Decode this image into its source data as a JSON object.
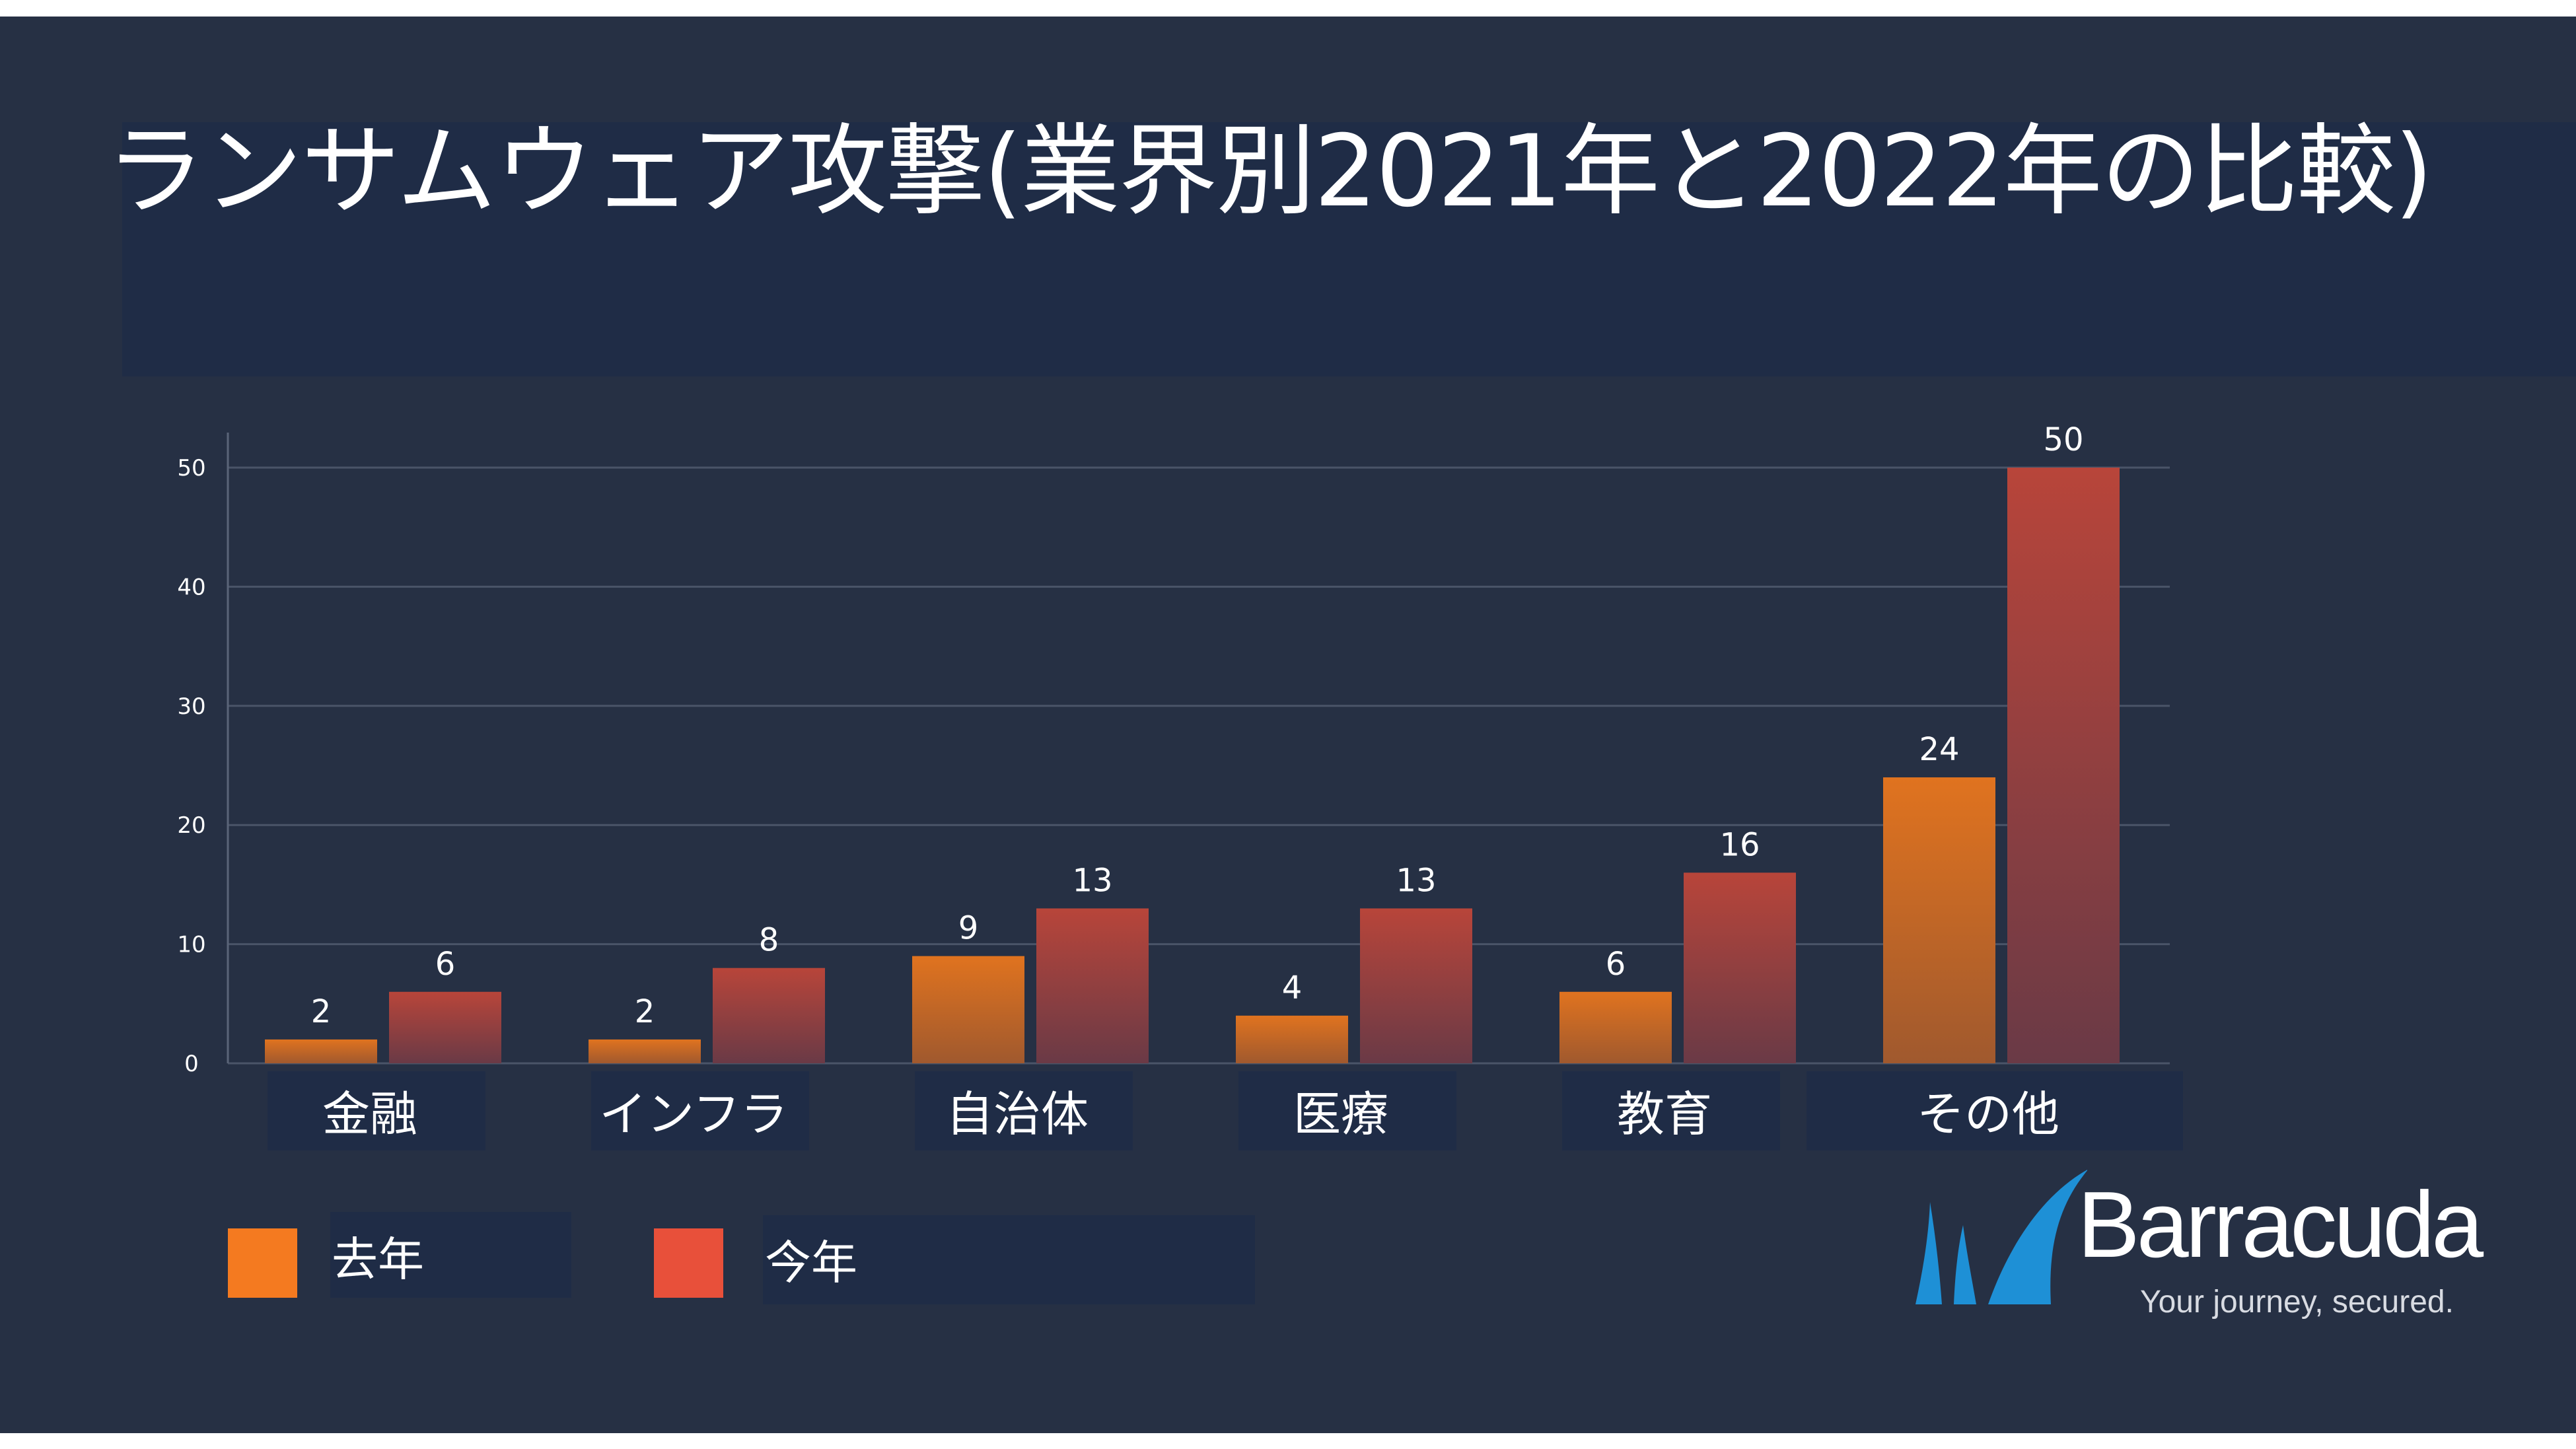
{
  "chart_data": {
    "type": "bar",
    "title": "ランサムウェア攻撃(業界別2021年と2022年の比較)",
    "categories": [
      "金融",
      "インフラ",
      "自治体",
      "医療",
      "教育",
      "その他"
    ],
    "series": [
      {
        "name": "去年",
        "values": [
          2,
          2,
          9,
          4,
          6,
          24
        ]
      },
      {
        "name": "今年",
        "values": [
          6,
          8,
          13,
          13,
          16,
          50
        ]
      }
    ],
    "ylim": [
      0,
      50
    ],
    "yticks": [
      0,
      10,
      20,
      30,
      40,
      50
    ],
    "grid": true,
    "legend": "bottom-left",
    "colors": {
      "去年": "#f47a20",
      "今年": "#e8503a"
    }
  },
  "brand": {
    "name": "Barracuda",
    "tagline": "Your journey, secured."
  }
}
